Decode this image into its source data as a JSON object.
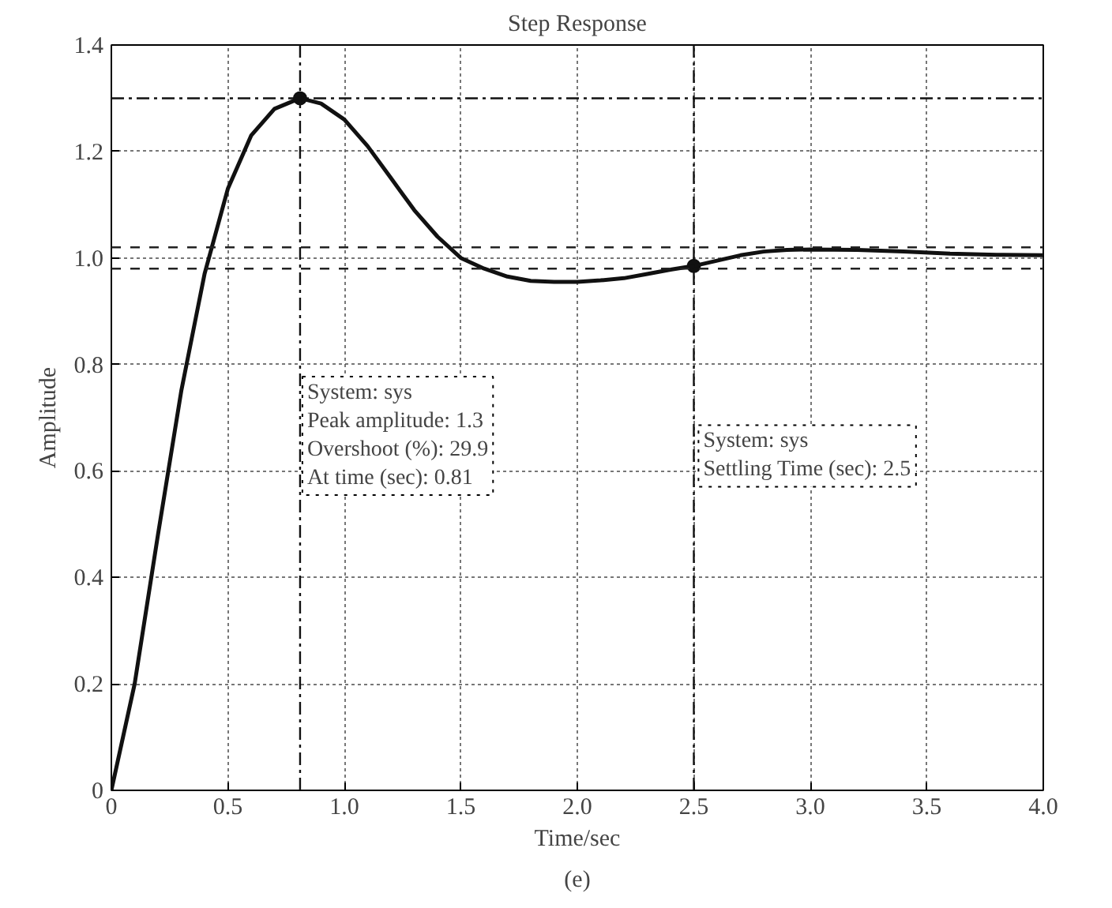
{
  "chart_data": {
    "type": "line",
    "title": "Step Response",
    "xlabel": "Time/sec",
    "ylabel": "Amplitude",
    "x": [
      0,
      0.1,
      0.2,
      0.3,
      0.4,
      0.5,
      0.6,
      0.7,
      0.81,
      0.9,
      1.0,
      1.1,
      1.2,
      1.3,
      1.4,
      1.5,
      1.6,
      1.7,
      1.8,
      1.9,
      2.0,
      2.1,
      2.2,
      2.3,
      2.4,
      2.5,
      2.6,
      2.7,
      2.8,
      2.9,
      3.0,
      3.2,
      3.4,
      3.6,
      3.8,
      4.0
    ],
    "series": [
      {
        "type": "scatter",
        "marker": "circle",
        "color": "#111111",
        "x": [
          0.81,
          2.5
        ],
        "values": [
          1.3,
          0.985
        ]
      },
      {
        "marker": "none",
        "color": "#111111",
        "values": [
          0,
          0.2,
          0.48,
          0.75,
          0.97,
          1.13,
          1.23,
          1.28,
          1.3,
          1.29,
          1.26,
          1.21,
          1.15,
          1.09,
          1.04,
          1.0,
          0.98,
          0.965,
          0.957,
          0.955,
          0.955,
          0.958,
          0.962,
          0.97,
          0.978,
          0.985,
          0.995,
          1.005,
          1.012,
          1.015,
          1.016,
          1.015,
          1.012,
          1.008,
          1.006,
          1.005
        ]
      }
    ],
    "xlim": [
      0,
      4.0
    ],
    "ylim": [
      0,
      1.4
    ],
    "xticks": [
      0,
      0.5,
      {
        "value": 1,
        "label": "1.0"
      },
      1.5,
      {
        "value": 2,
        "label": "2.0"
      },
      2.5,
      {
        "value": 3,
        "label": "3.0"
      },
      3.5,
      {
        "value": 4,
        "label": "4.0"
      }
    ],
    "yticks": [
      0,
      0.2,
      0.4,
      0.6,
      0.8,
      {
        "value": 1,
        "label": "1.0"
      },
      1.2,
      1.4
    ],
    "grid": true,
    "line_style": "solid",
    "ref_lines": [
      {
        "axis": "x",
        "value": 0.81,
        "line_style": "dashdot",
        "color": "#111111"
      },
      {
        "axis": "y",
        "value": 1.3,
        "line_style": "dashdot",
        "color": "#111111"
      },
      {
        "axis": "x",
        "value": 2.5,
        "line_style": "dashdot",
        "color": "#111111"
      },
      {
        "axis": "y",
        "value": 1.02,
        "line_style": "dashed",
        "color": "#222222"
      },
      {
        "axis": "y",
        "value": 0.98,
        "line_style": "dashed",
        "color": "#222222"
      }
    ],
    "annotations": [
      "System: sys\nPeak amplitude: 1.3\nOvershoot (%): 29.9\nAt time (sec): 0.81",
      "System: sys\nSettling Time (sec): 2.5",
      "(e)"
    ]
  }
}
